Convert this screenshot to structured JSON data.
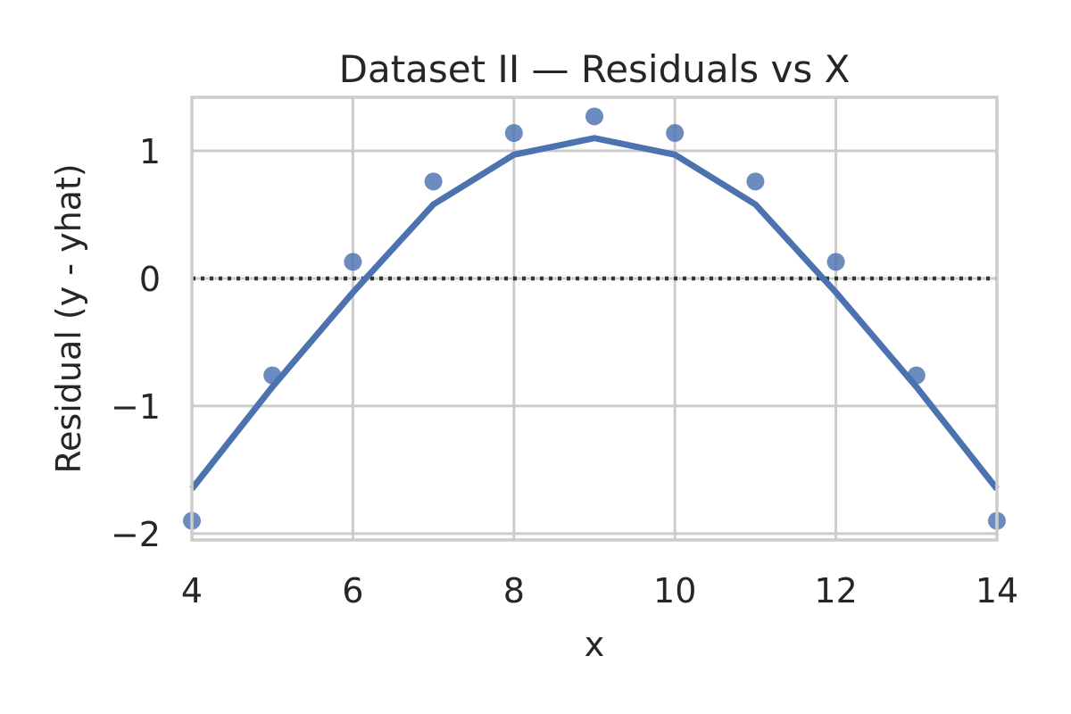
{
  "chart_data": {
    "type": "scatter",
    "title": "Dataset II — Residuals vs X",
    "xlabel": "x",
    "ylabel": "Residual (y - yhat)",
    "xlim": [
      4,
      14
    ],
    "ylim": [
      -2.05,
      1.42
    ],
    "x_ticks": [
      4,
      6,
      8,
      10,
      12,
      14
    ],
    "y_ticks": [
      -2,
      -1,
      0,
      1
    ],
    "x_tick_labels": [
      "4",
      "6",
      "8",
      "10",
      "12",
      "14"
    ],
    "y_tick_labels": [
      "−2",
      "−1",
      "0",
      "1"
    ],
    "grid": true,
    "reference_line": {
      "y": 0,
      "style": "dotted",
      "color": "#333333"
    },
    "series": [
      {
        "kind": "points",
        "color": "#4c72b0",
        "x": [
          4,
          5,
          6,
          7,
          8,
          9,
          10,
          11,
          12,
          13,
          14
        ],
        "y": [
          -1.9,
          -0.76,
          0.13,
          0.76,
          1.14,
          1.27,
          1.14,
          0.76,
          0.13,
          -0.76,
          -1.9
        ]
      },
      {
        "kind": "line",
        "color": "#4c72b0",
        "x": [
          4,
          5,
          6,
          7,
          8,
          9,
          10,
          11,
          12,
          13,
          14
        ],
        "y": [
          -1.65,
          -0.85,
          -0.11,
          0.58,
          0.97,
          1.1,
          0.97,
          0.58,
          -0.11,
          -0.85,
          -1.65
        ]
      }
    ]
  }
}
